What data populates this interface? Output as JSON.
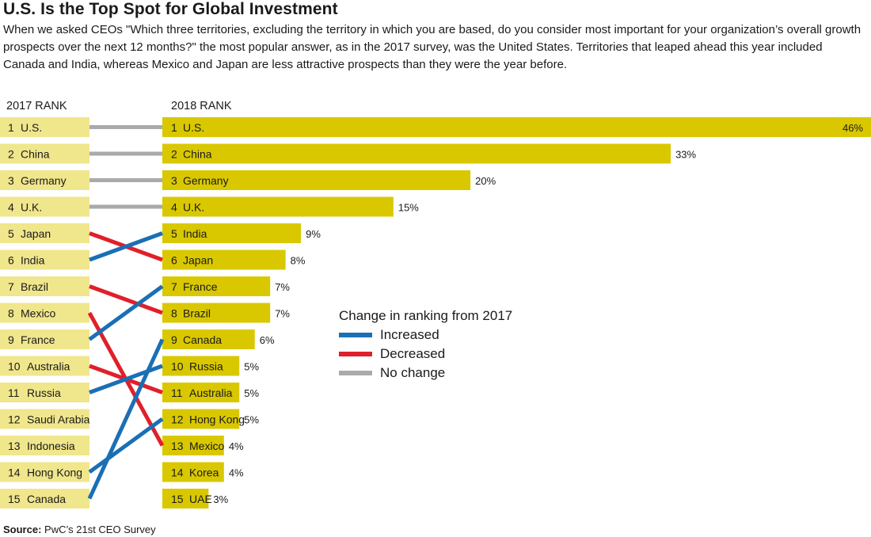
{
  "title": "U.S. Is the Top Spot for Global Investment",
  "subtitle": "When we asked CEOs \"Which three territories, excluding the territory in which you are based, do you consider most important for your organization’s overall growth prospects over the next 12 months?\" the most popular answer, as in the 2017 survey, was the United States. Territories that leaped ahead this year included Canada and India, whereas Mexico and Japan are less attractive prospects than they were the year before.",
  "source_label": "Source:",
  "source_text": " PwC’s 21st CEO Survey",
  "colors": {
    "bar_2018": "#d9c800",
    "box_2017": "#f0e68c",
    "increased": "#1a6fb5",
    "decreased": "#e0202a",
    "no_change": "#aaaaaa"
  },
  "chart_data": {
    "type": "bar",
    "left_header": "2017 RANK",
    "right_header": "2018 RANK",
    "ranks_2017": [
      {
        "rank": "1",
        "name": "U.S."
      },
      {
        "rank": "2",
        "name": "China"
      },
      {
        "rank": "3",
        "name": "Germany"
      },
      {
        "rank": "4",
        "name": "U.K."
      },
      {
        "rank": "5",
        "name": "Japan"
      },
      {
        "rank": "6",
        "name": "India"
      },
      {
        "rank": "7",
        "name": "Brazil"
      },
      {
        "rank": "8",
        "name": "Mexico"
      },
      {
        "rank": "9",
        "name": "France"
      },
      {
        "rank": "10",
        "name": "Australia"
      },
      {
        "rank": "11",
        "name": "Russia"
      },
      {
        "rank": "12",
        "name": "Saudi Arabia"
      },
      {
        "rank": "13",
        "name": "Indonesia"
      },
      {
        "rank": "14",
        "name": "Hong Kong"
      },
      {
        "rank": "15",
        "name": "Canada"
      }
    ],
    "ranks_2018": [
      {
        "rank": "1",
        "name": "U.S.",
        "value": 46,
        "label": "46%"
      },
      {
        "rank": "2",
        "name": "China",
        "value": 33,
        "label": "33%"
      },
      {
        "rank": "3",
        "name": "Germany",
        "value": 20,
        "label": "20%"
      },
      {
        "rank": "4",
        "name": "U.K.",
        "value": 15,
        "label": "15%"
      },
      {
        "rank": "5",
        "name": "India",
        "value": 9,
        "label": "9%"
      },
      {
        "rank": "6",
        "name": "Japan",
        "value": 8,
        "label": "8%"
      },
      {
        "rank": "7",
        "name": "France",
        "value": 7,
        "label": "7%"
      },
      {
        "rank": "8",
        "name": "Brazil",
        "value": 7,
        "label": "7%"
      },
      {
        "rank": "9",
        "name": "Canada",
        "value": 6,
        "label": "6%"
      },
      {
        "rank": "10",
        "name": "Russia",
        "value": 5,
        "label": "5%"
      },
      {
        "rank": "11",
        "name": "Australia",
        "value": 5,
        "label": "5%"
      },
      {
        "rank": "12",
        "name": "Hong Kong",
        "value": 5,
        "label": "5%"
      },
      {
        "rank": "13",
        "name": "Mexico",
        "value": 4,
        "label": "4%"
      },
      {
        "rank": "14",
        "name": "Korea",
        "value": 4,
        "label": "4%"
      },
      {
        "rank": "15",
        "name": "UAE",
        "value": 3,
        "label": "3%"
      }
    ],
    "connections": [
      {
        "from": 1,
        "to": 1,
        "change": "no_change"
      },
      {
        "from": 2,
        "to": 2,
        "change": "no_change"
      },
      {
        "from": 3,
        "to": 3,
        "change": "no_change"
      },
      {
        "from": 4,
        "to": 4,
        "change": "no_change"
      },
      {
        "from": 5,
        "to": 6,
        "change": "decreased"
      },
      {
        "from": 6,
        "to": 5,
        "change": "increased"
      },
      {
        "from": 7,
        "to": 8,
        "change": "decreased"
      },
      {
        "from": 8,
        "to": 13,
        "change": "decreased"
      },
      {
        "from": 9,
        "to": 7,
        "change": "increased"
      },
      {
        "from": 10,
        "to": 11,
        "change": "decreased"
      },
      {
        "from": 11,
        "to": 10,
        "change": "increased"
      },
      {
        "from": 14,
        "to": 12,
        "change": "increased"
      },
      {
        "from": 15,
        "to": 9,
        "change": "increased"
      }
    ],
    "legend": {
      "title": "Change in ranking from 2017",
      "placement": "right",
      "items": [
        {
          "key": "increased",
          "label": "Increased"
        },
        {
          "key": "decreased",
          "label": "Decreased"
        },
        {
          "key": "no_change",
          "label": "No change"
        }
      ]
    },
    "xlim": [
      0,
      46
    ]
  }
}
